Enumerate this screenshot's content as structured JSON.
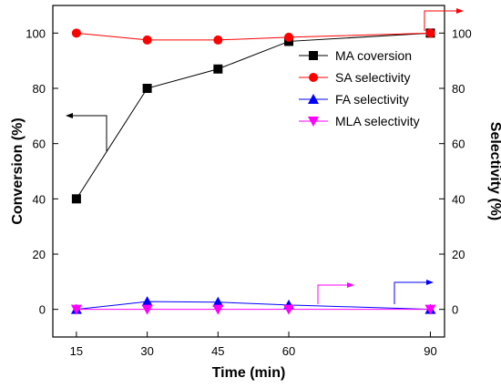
{
  "chart_data": {
    "type": "line",
    "xlabel": "Time (min)",
    "ylabel_left": "Conversion (%)",
    "ylabel_right": "Selectivity (%)",
    "xlim": [
      10,
      93
    ],
    "ylim": [
      -10,
      110
    ],
    "x_ticks": [
      15,
      30,
      45,
      60,
      90
    ],
    "y_ticks": [
      0,
      20,
      40,
      60,
      80,
      100
    ],
    "legend_position": "top-right",
    "grid": false,
    "series": [
      {
        "name": "MA coversion",
        "axis": "left",
        "marker": "square",
        "color": "#000000",
        "x": [
          15,
          30,
          45,
          60,
          90
        ],
        "y": [
          40,
          80,
          87,
          97,
          100
        ]
      },
      {
        "name": "SA selectivity",
        "axis": "right",
        "marker": "circle",
        "color": "#ff0000",
        "x": [
          15,
          30,
          45,
          60,
          90
        ],
        "y": [
          100,
          97.5,
          97.5,
          98.5,
          100
        ]
      },
      {
        "name": "FA selectivity",
        "axis": "right",
        "marker": "triangle-up",
        "color": "#0000ff",
        "x": [
          15,
          30,
          45,
          60,
          90
        ],
        "y": [
          0,
          2.8,
          2.6,
          1.6,
          0
        ]
      },
      {
        "name": "MLA selectivity",
        "axis": "right",
        "marker": "triangle-down",
        "color": "#ff00ff",
        "x": [
          15,
          30,
          45,
          60,
          90
        ],
        "y": [
          0,
          0,
          0,
          0,
          0
        ]
      }
    ]
  }
}
